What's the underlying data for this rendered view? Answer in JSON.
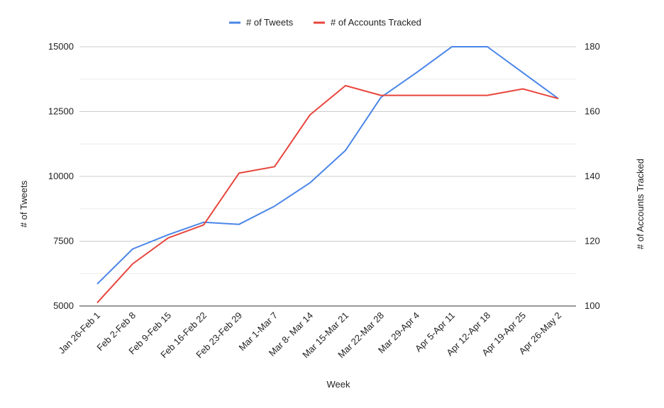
{
  "chart_data": {
    "type": "line",
    "title": "",
    "xlabel": "Week",
    "ylabel_left": "# of Tweets",
    "ylabel_right": "# of Accounts Tracked",
    "legend_position": "top",
    "grid": true,
    "categories": [
      "Jan 26-Feb 1",
      "Feb 2-Feb 8",
      "Feb 9-Feb 15",
      "Feb 16-Feb 22",
      "Feb 23-Feb 29",
      "Mar 1-Mar 7",
      "Mar 8- Mar 14",
      "Mar 15-Mar 21",
      "Mar 22-Mar 28",
      "Mar 29-Apr 4",
      "Apr 5-Apr 11",
      "Apr 12-Apr 18",
      "Apr 19-Apr 25",
      "Apr 26-May 2"
    ],
    "y_left": {
      "range": [
        5000,
        15000
      ],
      "ticks": [
        5000,
        7500,
        10000,
        12500,
        15000
      ],
      "tick_labels": [
        "5000",
        "7500",
        "10000",
        "12500",
        "15000"
      ]
    },
    "y_right": {
      "range": [
        100,
        180
      ],
      "ticks": [
        100,
        120,
        140,
        160,
        180
      ],
      "tick_labels": [
        "100",
        "120",
        "140",
        "160",
        "180"
      ]
    },
    "series": [
      {
        "name": "# of Tweets",
        "axis": "left",
        "color": "#4a86e8",
        "values": [
          5850,
          7200,
          7750,
          8230,
          8150,
          8850,
          9750,
          11000,
          13050,
          14000,
          15000,
          15000,
          14000,
          13000
        ]
      },
      {
        "name": "# of Accounts Tracked",
        "axis": "right",
        "color": "#e8453c",
        "values": [
          101,
          113,
          121,
          125,
          141,
          143,
          159,
          168,
          165,
          165,
          165,
          165,
          167,
          164
        ]
      }
    ]
  }
}
